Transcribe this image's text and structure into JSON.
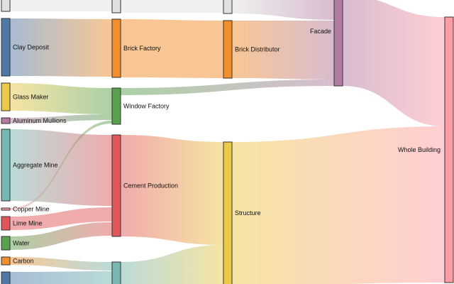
{
  "diagram": {
    "type": "sankey",
    "nodes": [
      {
        "id": "top1",
        "label": "",
        "color": "#e0e0e0"
      },
      {
        "id": "clay",
        "label": "Clay Deposit",
        "color": "#4e79a7"
      },
      {
        "id": "glass",
        "label": "Glass Maker",
        "color": "#edc948"
      },
      {
        "id": "alum",
        "label": "Aluminum Mullions",
        "color": "#b07aa1"
      },
      {
        "id": "agg",
        "label": "Aggregate Mine",
        "color": "#76b7b2"
      },
      {
        "id": "copper",
        "label": "Copper Mine",
        "color": "#ff9da7"
      },
      {
        "id": "lime",
        "label": "Lime Mine",
        "color": "#e15759"
      },
      {
        "id": "water",
        "label": "Water",
        "color": "#59a14f"
      },
      {
        "id": "carbon",
        "label": "Carbon",
        "color": "#f28e2b"
      },
      {
        "id": "bottom1",
        "label": "",
        "color": "#4e79a7"
      },
      {
        "id": "top2",
        "label": "",
        "color": "#e0e0e0"
      },
      {
        "id": "brickf",
        "label": "Brick Factory",
        "color": "#f28e2b"
      },
      {
        "id": "window",
        "label": "Window Factory",
        "color": "#59a14f"
      },
      {
        "id": "cement",
        "label": "Cement Production",
        "color": "#e15759"
      },
      {
        "id": "bottom2",
        "label": "",
        "color": "#76b7b2"
      },
      {
        "id": "top3",
        "label": "",
        "color": "#e0e0e0"
      },
      {
        "id": "brickd",
        "label": "Brick Distributor",
        "color": "#f28e2b"
      },
      {
        "id": "structure",
        "label": "Structure",
        "color": "#edc948"
      },
      {
        "id": "facade",
        "label": "Facade",
        "color": "#b07aa1"
      },
      {
        "id": "whole",
        "label": "Whole Building",
        "color": "#ff9da7"
      }
    ],
    "links": [
      {
        "source": "top1",
        "target": "top2"
      },
      {
        "source": "clay",
        "target": "brickf"
      },
      {
        "source": "glass",
        "target": "window"
      },
      {
        "source": "alum",
        "target": "window"
      },
      {
        "source": "agg",
        "target": "cement"
      },
      {
        "source": "copper",
        "target": "window"
      },
      {
        "source": "lime",
        "target": "cement"
      },
      {
        "source": "water",
        "target": "cement"
      },
      {
        "source": "carbon",
        "target": "bottom2"
      },
      {
        "source": "bottom1",
        "target": "bottom2"
      },
      {
        "source": "top2",
        "target": "top3"
      },
      {
        "source": "brickf",
        "target": "brickd"
      },
      {
        "source": "window",
        "target": "facade"
      },
      {
        "source": "cement",
        "target": "structure"
      },
      {
        "source": "bottom2",
        "target": "structure"
      },
      {
        "source": "top3",
        "target": "facade"
      },
      {
        "source": "brickd",
        "target": "facade"
      },
      {
        "source": "facade",
        "target": "whole"
      },
      {
        "source": "structure",
        "target": "whole"
      }
    ]
  }
}
